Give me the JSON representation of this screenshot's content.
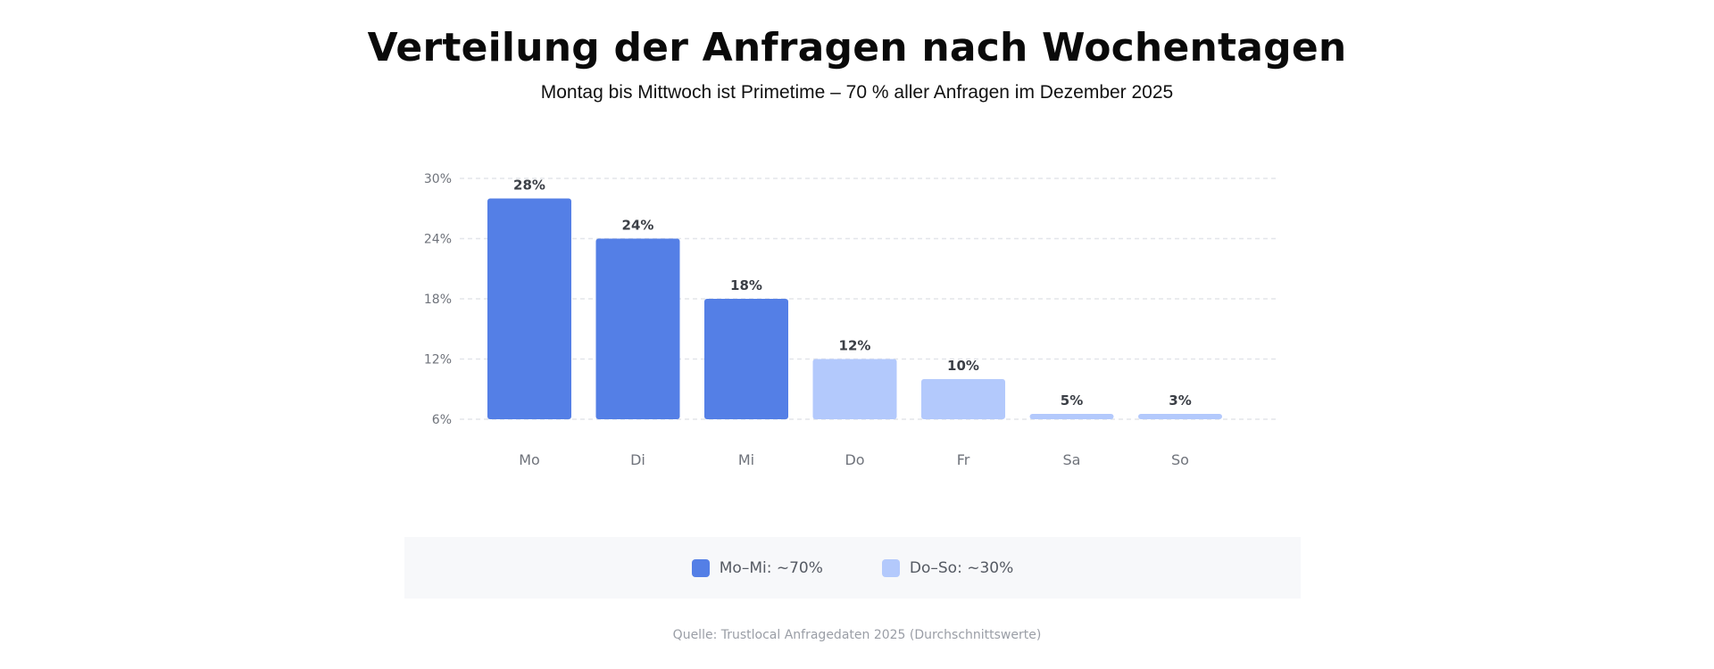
{
  "title": "Verteilung der Anfragen nach Wochentagen",
  "subtitle": "Montag bis Mittwoch ist Primetime – 70 % aller Anfragen im Dezember 2025",
  "source": "Quelle: Trustlocal Anfragedaten 2025 (Durchschnittswerte)",
  "legend": [
    {
      "label": "Mo–Mi: ~70%",
      "color": "#547fe6"
    },
    {
      "label": "Do–So: ~30%",
      "color": "#b3c9fc"
    }
  ],
  "chart_data": {
    "type": "bar",
    "title": "Verteilung der Anfragen nach Wochentagen",
    "xlabel": "",
    "ylabel": "",
    "categories": [
      "Mo",
      "Di",
      "Mi",
      "Do",
      "Fr",
      "Sa",
      "So"
    ],
    "values": [
      28,
      24,
      18,
      12,
      10,
      5,
      3
    ],
    "value_labels": [
      "28%",
      "24%",
      "18%",
      "12%",
      "10%",
      "5%",
      "3%"
    ],
    "groups": [
      0,
      0,
      0,
      1,
      1,
      1,
      1
    ],
    "group_colors": [
      "#547fe6",
      "#b3c9fc"
    ],
    "yticks": [
      6,
      12,
      18,
      24,
      30
    ],
    "ytick_labels": [
      "6%",
      "12%",
      "18%",
      "24%",
      "30%"
    ],
    "ylim": [
      6,
      30
    ],
    "grid": true,
    "legend_position": "bottom"
  }
}
